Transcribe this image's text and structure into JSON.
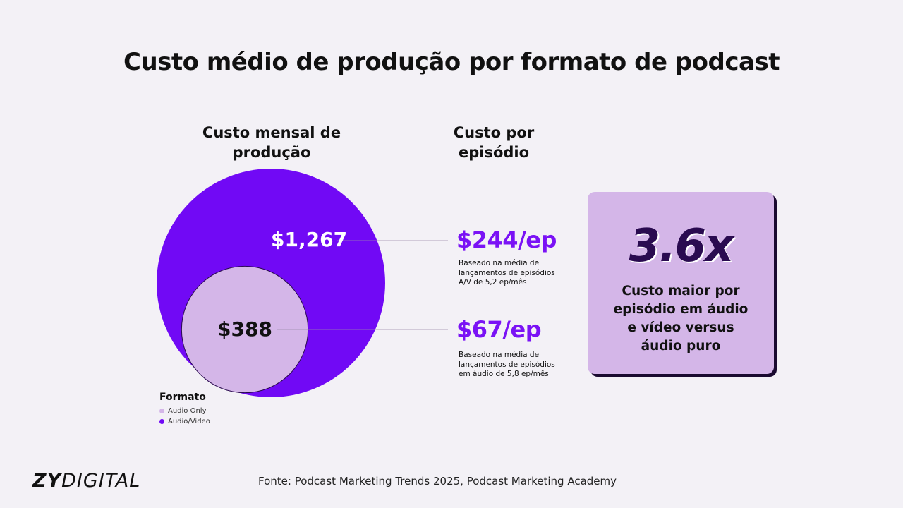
{
  "title": "Custo médio de produção por formato de podcast",
  "headers": {
    "monthly": "Custo mensal de produção",
    "per_episode": "Custo por episódio"
  },
  "chart_data": {
    "type": "bubble",
    "title": "Custo mensal de produção",
    "series": [
      {
        "name": "Audio/Video",
        "value": 1267,
        "label": "$1,267",
        "color": "#7109f5",
        "per_episode": "$244/ep",
        "note": "Baseado na média de lançamentos de episódios A/V de 5,2 ep/mês"
      },
      {
        "name": "Audio Only",
        "value": 388,
        "label": "$388",
        "color": "#d4b6e8",
        "per_episode": "$67/ep",
        "note": "Baseado na média de lançamentos de episódios em áudio de 5,8 ep/mês"
      }
    ]
  },
  "notes": {
    "av": [
      "Baseado na média de",
      "lançamentos de episódios",
      "A/V de 5,2 ep/mês"
    ],
    "audio": [
      "Baseado na média de",
      "lançamentos de episódios",
      "em áudio de 5,8 ep/mês"
    ]
  },
  "stat": {
    "value": "3.6x",
    "lines": [
      "Custo maior por",
      "episódio em áudio",
      "e vídeo versus",
      "áudio puro"
    ]
  },
  "legend": {
    "title": "Formato",
    "items": [
      {
        "label": "Audio Only",
        "color": "#d4b6e8"
      },
      {
        "label": "Audio/Video",
        "color": "#7109f5"
      }
    ]
  },
  "logo": {
    "bold": "ZY",
    "light": "DIGITAL"
  },
  "source": "Fonte: Podcast Marketing Trends 2025, Podcast Marketing Academy"
}
